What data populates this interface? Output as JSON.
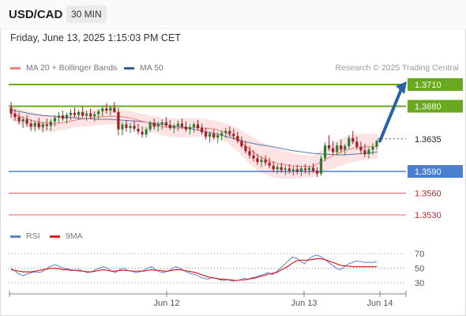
{
  "header": {
    "pair": "USD/CAD",
    "timeframe": "30 MIN"
  },
  "datetime": "Friday, June 13, 2025 1:15:03 PM CET",
  "legend": {
    "ma20": {
      "label": "MA 20 + Bollinger Bands",
      "color": "#f08080"
    },
    "ma50": {
      "label": "MA 50",
      "color": "#2d5b9a"
    }
  },
  "credit": "Research © 2025 Trading Central",
  "rsi_legend": {
    "rsi": {
      "label": "RSI",
      "color": "#5b80d6"
    },
    "ma9": {
      "label": "9MA",
      "color": "#dd1c1c"
    }
  },
  "colors": {
    "up": "#2e7d32",
    "down": "#a11f24",
    "green_level": "#6aa820",
    "blue_level": "#4a7fd0",
    "red_level": "#e06060",
    "arrow": "#2a62a8",
    "band": "#fcd9d9"
  },
  "chart_data": {
    "type": "candlestick",
    "price_range": [
      1.3515,
      1.3725
    ],
    "levels": [
      {
        "value": 1.371,
        "label": "1.3710",
        "style": "target"
      },
      {
        "value": 1.368,
        "label": "1.3680",
        "style": "resistance"
      },
      {
        "value": 1.3635,
        "label": "1.3635",
        "style": "pivot"
      },
      {
        "value": 1.359,
        "label": "1.3590",
        "style": "support"
      },
      {
        "value": 1.356,
        "label": "1.3560",
        "style": "support2"
      },
      {
        "value": 1.353,
        "label": "1.3530",
        "style": "support3"
      }
    ],
    "x_labels": [
      "Jun 12",
      "Jun 13",
      "Jun 14"
    ],
    "candles": [
      [
        1.3678,
        1.3686,
        1.3664,
        1.367
      ],
      [
        1.367,
        1.3676,
        1.366,
        1.3665
      ],
      [
        1.3665,
        1.3671,
        1.3655,
        1.3659
      ],
      [
        1.3659,
        1.3666,
        1.365,
        1.3662
      ],
      [
        1.3662,
        1.3668,
        1.3652,
        1.3656
      ],
      [
        1.3656,
        1.3662,
        1.3646,
        1.3652
      ],
      [
        1.3652,
        1.366,
        1.3645,
        1.3657
      ],
      [
        1.3657,
        1.3664,
        1.3648,
        1.3651
      ],
      [
        1.3651,
        1.3659,
        1.3644,
        1.3655
      ],
      [
        1.3655,
        1.3663,
        1.3647,
        1.3653
      ],
      [
        1.3653,
        1.3662,
        1.3646,
        1.3659
      ],
      [
        1.3659,
        1.3668,
        1.3652,
        1.3664
      ],
      [
        1.3664,
        1.3672,
        1.3657,
        1.3667
      ],
      [
        1.3667,
        1.3674,
        1.366,
        1.3663
      ],
      [
        1.3663,
        1.3671,
        1.3656,
        1.3668
      ],
      [
        1.3668,
        1.3676,
        1.3661,
        1.3671
      ],
      [
        1.3671,
        1.3678,
        1.3664,
        1.3668
      ],
      [
        1.3668,
        1.3675,
        1.3661,
        1.3672
      ],
      [
        1.3672,
        1.3679,
        1.3665,
        1.3667
      ],
      [
        1.3667,
        1.3674,
        1.366,
        1.367
      ],
      [
        1.367,
        1.3677,
        1.3663,
        1.3666
      ],
      [
        1.3666,
        1.3673,
        1.3659,
        1.3669
      ],
      [
        1.3669,
        1.3676,
        1.3662,
        1.3673
      ],
      [
        1.3673,
        1.3681,
        1.3666,
        1.3677
      ],
      [
        1.3677,
        1.3684,
        1.367,
        1.3674
      ],
      [
        1.3674,
        1.3681,
        1.3667,
        1.3678
      ],
      [
        1.3678,
        1.3686,
        1.3671,
        1.3672
      ],
      [
        1.3672,
        1.3678,
        1.364,
        1.3648
      ],
      [
        1.3648,
        1.3658,
        1.364,
        1.3655
      ],
      [
        1.3655,
        1.3661,
        1.3645,
        1.365
      ],
      [
        1.365,
        1.3657,
        1.3643,
        1.3653
      ],
      [
        1.3653,
        1.366,
        1.3645,
        1.3649
      ],
      [
        1.3649,
        1.3656,
        1.3641,
        1.3645
      ],
      [
        1.3645,
        1.3652,
        1.3637,
        1.3641
      ],
      [
        1.3641,
        1.3651,
        1.3637,
        1.3648
      ],
      [
        1.3648,
        1.366,
        1.3644,
        1.3657
      ],
      [
        1.3657,
        1.3663,
        1.3648,
        1.3652
      ],
      [
        1.3652,
        1.3659,
        1.3645,
        1.3655
      ],
      [
        1.3655,
        1.3662,
        1.3648,
        1.3658
      ],
      [
        1.3658,
        1.3665,
        1.3651,
        1.3654
      ],
      [
        1.3654,
        1.3661,
        1.3647,
        1.365
      ],
      [
        1.365,
        1.3656,
        1.3643,
        1.3653
      ],
      [
        1.3653,
        1.366,
        1.3646,
        1.3656
      ],
      [
        1.3656,
        1.3663,
        1.3649,
        1.3652
      ],
      [
        1.3652,
        1.3659,
        1.3645,
        1.3648
      ],
      [
        1.3648,
        1.3655,
        1.3641,
        1.3651
      ],
      [
        1.3651,
        1.3658,
        1.3644,
        1.3655
      ],
      [
        1.3655,
        1.3661,
        1.3647,
        1.365
      ],
      [
        1.365,
        1.3656,
        1.3641,
        1.3644
      ],
      [
        1.3644,
        1.365,
        1.3634,
        1.3638
      ],
      [
        1.3638,
        1.3645,
        1.363,
        1.3642
      ],
      [
        1.3642,
        1.3648,
        1.3634,
        1.3637
      ],
      [
        1.3637,
        1.3644,
        1.3629,
        1.364
      ],
      [
        1.364,
        1.3647,
        1.3633,
        1.3643
      ],
      [
        1.3643,
        1.365,
        1.3636,
        1.3646
      ],
      [
        1.3646,
        1.3652,
        1.3638,
        1.3642
      ],
      [
        1.3642,
        1.3649,
        1.3634,
        1.3639
      ],
      [
        1.3639,
        1.3645,
        1.3629,
        1.3632
      ],
      [
        1.3632,
        1.3638,
        1.3622,
        1.3625
      ],
      [
        1.3625,
        1.3632,
        1.3615,
        1.3618
      ],
      [
        1.3618,
        1.3625,
        1.3608,
        1.3612
      ],
      [
        1.3612,
        1.3619,
        1.3604,
        1.3608
      ],
      [
        1.3608,
        1.3614,
        1.3599,
        1.3603
      ],
      [
        1.3603,
        1.3611,
        1.3596,
        1.3606
      ],
      [
        1.3606,
        1.3612,
        1.3598,
        1.3602
      ],
      [
        1.3602,
        1.3609,
        1.3594,
        1.3598
      ],
      [
        1.3598,
        1.3604,
        1.3589,
        1.3593
      ],
      [
        1.3593,
        1.36,
        1.3587,
        1.3596
      ],
      [
        1.3596,
        1.3602,
        1.3588,
        1.3592
      ],
      [
        1.3592,
        1.3598,
        1.3585,
        1.3594
      ],
      [
        1.3594,
        1.36,
        1.3587,
        1.3591
      ],
      [
        1.3591,
        1.3597,
        1.3584,
        1.3593
      ],
      [
        1.3593,
        1.3599,
        1.3586,
        1.359
      ],
      [
        1.359,
        1.3597,
        1.3583,
        1.3594
      ],
      [
        1.3594,
        1.36,
        1.3587,
        1.3592
      ],
      [
        1.3592,
        1.3598,
        1.3585,
        1.3595
      ],
      [
        1.3595,
        1.3601,
        1.3588,
        1.3591
      ],
      [
        1.3591,
        1.3596,
        1.3582,
        1.3587
      ],
      [
        1.3587,
        1.3612,
        1.3584,
        1.3608
      ],
      [
        1.3608,
        1.363,
        1.3604,
        1.3626
      ],
      [
        1.3626,
        1.364,
        1.3618,
        1.3622
      ],
      [
        1.3622,
        1.3632,
        1.3613,
        1.3617
      ],
      [
        1.3617,
        1.363,
        1.3612,
        1.3626
      ],
      [
        1.3626,
        1.3634,
        1.3616,
        1.362
      ],
      [
        1.362,
        1.3628,
        1.3612,
        1.3625
      ],
      [
        1.3625,
        1.364,
        1.3621,
        1.3636
      ],
      [
        1.3636,
        1.3646,
        1.3628,
        1.3631
      ],
      [
        1.3631,
        1.3638,
        1.362,
        1.3624
      ],
      [
        1.3624,
        1.3631,
        1.3615,
        1.3619
      ],
      [
        1.3619,
        1.3628,
        1.361,
        1.3614
      ],
      [
        1.3614,
        1.3623,
        1.3608,
        1.362
      ],
      [
        1.362,
        1.3629,
        1.3613,
        1.3624
      ],
      [
        1.3624,
        1.3634,
        1.362,
        1.3632
      ]
    ],
    "ma20": [
      1.367,
      1.3665,
      1.366,
      1.3657,
      1.3656,
      1.3658,
      1.3661,
      1.3663,
      1.3665,
      1.3666,
      1.3666,
      1.3664,
      1.366,
      1.3656,
      1.3652,
      1.365,
      1.365,
      1.3651,
      1.365,
      1.3648,
      1.3643,
      1.3634,
      1.3622,
      1.3611,
      1.3604,
      1.36,
      1.3598,
      1.3597,
      1.3597,
      1.3605,
      1.3613,
      1.3619,
      1.3623,
      1.3624,
      1.3625
    ],
    "ma50": [
      1.3675,
      1.3672,
      1.3669,
      1.3667,
      1.3666,
      1.3665,
      1.3664,
      1.3663,
      1.3662,
      1.3662,
      1.3661,
      1.366,
      1.3659,
      1.3657,
      1.3655,
      1.3653,
      1.3651,
      1.3648,
      1.3645,
      1.3642,
      1.3638,
      1.3634,
      1.363,
      1.3627,
      1.3625,
      1.3622,
      1.3619,
      1.3617,
      1.3615,
      1.3614,
      1.3613,
      1.3613,
      1.3614,
      1.3615,
      1.3617
    ],
    "band_width": [
      0.001,
      0.0011,
      0.0012,
      0.0012,
      0.0011,
      0.001,
      0.001,
      0.0011,
      0.0011,
      0.0011,
      0.001,
      0.001,
      0.001,
      0.0011,
      0.0012,
      0.0013,
      0.0013,
      0.0013,
      0.0012,
      0.0012,
      0.0013,
      0.0016,
      0.0019,
      0.0021,
      0.0021,
      0.002,
      0.0018,
      0.0016,
      0.0015,
      0.0016,
      0.0018,
      0.0019,
      0.0019,
      0.0018,
      0.0017
    ],
    "rsi": [
      50,
      46,
      42,
      40,
      42,
      44,
      45,
      44,
      46,
      50,
      53,
      55,
      52,
      50,
      49,
      48,
      47,
      48,
      46,
      44,
      45,
      48,
      50,
      52,
      50,
      46,
      44,
      48,
      50,
      47,
      46,
      44,
      45,
      47,
      50,
      52,
      48,
      45,
      44,
      46,
      49,
      52,
      50,
      47,
      44,
      42,
      41,
      38,
      36,
      35,
      37,
      36,
      34,
      33,
      35,
      32,
      33,
      34,
      36,
      35,
      37,
      38,
      40,
      42,
      44,
      41,
      45,
      50,
      55,
      60,
      65,
      64,
      60,
      56,
      62,
      66,
      68,
      66,
      62,
      58,
      54,
      50,
      48,
      52,
      56,
      58,
      60,
      59,
      58,
      58,
      58,
      59
    ],
    "rsi_ma": [
      48,
      47,
      46,
      45,
      45,
      45,
      46,
      47,
      48,
      49,
      50,
      50,
      49,
      48,
      48,
      47,
      47,
      46,
      46,
      45,
      45,
      46,
      47,
      48,
      47,
      46,
      46,
      47,
      47,
      47,
      46,
      46,
      46,
      46,
      47,
      48,
      47,
      47,
      46,
      46,
      47,
      48,
      48,
      47,
      46,
      45,
      44,
      42,
      40,
      38,
      37,
      36,
      35,
      35,
      34,
      34,
      33,
      34,
      34,
      35,
      36,
      37,
      39,
      40,
      42,
      43,
      44,
      47,
      50,
      53,
      57,
      60,
      61,
      61,
      61,
      62,
      63,
      63,
      62,
      60,
      58,
      56,
      54,
      53,
      53,
      52,
      52,
      52,
      52,
      52,
      52,
      52
    ],
    "rsi_levels": [
      70,
      50,
      30
    ],
    "rsi_range": [
      20,
      80
    ]
  }
}
